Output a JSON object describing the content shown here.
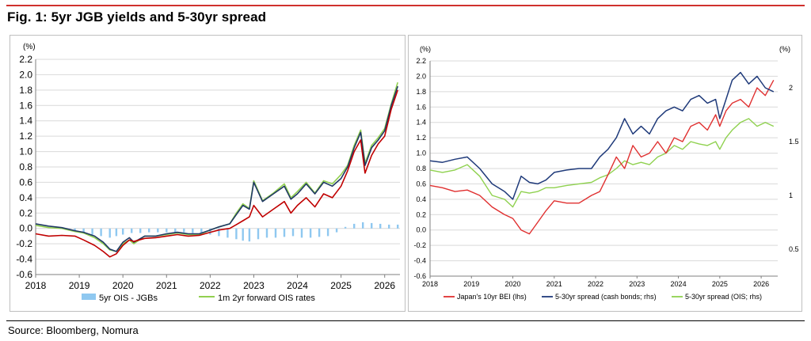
{
  "figure": {
    "title": "Fig. 1: 5yr JGB yields and 5-30yr spread",
    "source": "Source: Bloomberg, Nomura"
  },
  "colors": {
    "accent_rule": "#d0312d",
    "series_5yr_jgb": "#c00000",
    "series_5yr_ois": "#1f3864",
    "series_forward_ois": "#92d050",
    "series_spread_bar": "#8fc8f0",
    "bei": "#e03030",
    "spread_cash": "#1f3a7a",
    "spread_ois": "#8fd14f"
  },
  "chart_data": [
    {
      "type": "line",
      "ylabel": "(%)",
      "ylim": [
        -0.6,
        2.2
      ],
      "yticks": [
        "2.2",
        "2.0",
        "1.8",
        "1.6",
        "1.4",
        "1.2",
        "1.0",
        "0.8",
        "0.6",
        "0.4",
        "0.2",
        "0.0",
        "-0.2",
        "-0.4",
        "-0.6"
      ],
      "xlim": [
        2018.0,
        2026.35
      ],
      "xticks": [
        "2018",
        "2019",
        "2020",
        "2021",
        "2022",
        "2023",
        "2024",
        "2025",
        "2026"
      ],
      "grid": true,
      "legend": "bottom",
      "series": [
        {
          "role": "navy",
          "x": [
            2018.0,
            2018.3,
            2018.6,
            2018.9,
            2019.1,
            2019.35,
            2019.55,
            2019.7,
            2019.85,
            2020.0,
            2020.15,
            2020.25,
            2020.5,
            2020.75,
            2021.0,
            2021.25,
            2021.5,
            2021.75,
            2022.0,
            2022.2,
            2022.45,
            2022.6,
            2022.75,
            2022.9,
            2023.0,
            2023.2,
            2023.45,
            2023.7,
            2023.85,
            2024.0,
            2024.2,
            2024.4,
            2024.6,
            2024.8,
            2025.0,
            2025.15,
            2025.3,
            2025.45,
            2025.55,
            2025.7,
            2025.85,
            2026.0,
            2026.15,
            2026.3
          ],
          "values": [
            0.06,
            0.03,
            0.01,
            -0.03,
            -0.05,
            -0.1,
            -0.18,
            -0.27,
            -0.3,
            -0.18,
            -0.12,
            -0.18,
            -0.1,
            -0.1,
            -0.07,
            -0.05,
            -0.07,
            -0.07,
            -0.02,
            0.02,
            0.06,
            0.18,
            0.3,
            0.25,
            0.6,
            0.35,
            0.45,
            0.55,
            0.38,
            0.45,
            0.58,
            0.45,
            0.6,
            0.55,
            0.65,
            0.8,
            1.05,
            1.25,
            0.82,
            1.05,
            1.15,
            1.27,
            1.6,
            1.85
          ]
        },
        {
          "role": "red",
          "x": [
            2018.0,
            2018.3,
            2018.6,
            2018.9,
            2019.1,
            2019.35,
            2019.55,
            2019.7,
            2019.85,
            2020.0,
            2020.15,
            2020.25,
            2020.5,
            2020.75,
            2021.0,
            2021.25,
            2021.5,
            2021.75,
            2022.0,
            2022.2,
            2022.45,
            2022.6,
            2022.75,
            2022.9,
            2023.0,
            2023.2,
            2023.45,
            2023.7,
            2023.85,
            2024.0,
            2024.2,
            2024.4,
            2024.6,
            2024.8,
            2025.0,
            2025.15,
            2025.3,
            2025.45,
            2025.55,
            2025.7,
            2025.85,
            2026.0,
            2026.15,
            2026.3
          ],
          "values": [
            -0.07,
            -0.1,
            -0.09,
            -0.1,
            -0.15,
            -0.22,
            -0.3,
            -0.37,
            -0.33,
            -0.22,
            -0.15,
            -0.17,
            -0.13,
            -0.12,
            -0.1,
            -0.08,
            -0.1,
            -0.09,
            -0.05,
            -0.02,
            0.0,
            0.05,
            0.1,
            0.15,
            0.3,
            0.15,
            0.25,
            0.35,
            0.2,
            0.3,
            0.4,
            0.28,
            0.45,
            0.4,
            0.55,
            0.75,
            1.0,
            1.15,
            0.72,
            0.95,
            1.1,
            1.2,
            1.55,
            1.8
          ]
        },
        {
          "role": "green",
          "x": [
            2018.0,
            2018.3,
            2018.6,
            2018.9,
            2019.1,
            2019.35,
            2019.55,
            2019.7,
            2019.85,
            2020.0,
            2020.15,
            2020.25,
            2020.5,
            2020.75,
            2021.0,
            2021.25,
            2021.5,
            2021.75,
            2022.0,
            2022.2,
            2022.45,
            2022.6,
            2022.75,
            2022.9,
            2023.0,
            2023.2,
            2023.45,
            2023.7,
            2023.85,
            2024.0,
            2024.2,
            2024.4,
            2024.6,
            2024.8,
            2025.0,
            2025.15,
            2025.3,
            2025.45,
            2025.55,
            2025.7,
            2025.85,
            2026.0,
            2026.15,
            2026.3
          ],
          "values": [
            0.04,
            0.01,
            0.0,
            -0.04,
            -0.06,
            -0.12,
            -0.2,
            -0.28,
            -0.3,
            -0.2,
            -0.15,
            -0.2,
            -0.1,
            -0.1,
            -0.08,
            -0.06,
            -0.08,
            -0.08,
            -0.02,
            0.02,
            0.06,
            0.2,
            0.32,
            0.26,
            0.62,
            0.36,
            0.46,
            0.58,
            0.4,
            0.48,
            0.6,
            0.46,
            0.62,
            0.58,
            0.7,
            0.82,
            1.08,
            1.28,
            0.85,
            1.08,
            1.18,
            1.3,
            1.62,
            1.9
          ]
        }
      ],
      "bars": {
        "x": [
          2018.7,
          2018.9,
          2019.1,
          2019.3,
          2019.5,
          2019.7,
          2019.85,
          2020.0,
          2020.2,
          2020.4,
          2020.6,
          2020.8,
          2021.0,
          2021.2,
          2021.4,
          2021.6,
          2021.8,
          2022.0,
          2022.2,
          2022.4,
          2022.6,
          2022.75,
          2022.9,
          2023.1,
          2023.3,
          2023.5,
          2023.7,
          2023.9,
          2024.1,
          2024.3,
          2024.5,
          2024.7,
          2024.9,
          2025.1,
          2025.3,
          2025.5,
          2025.7,
          2025.9,
          2026.1,
          2026.3
        ],
        "values": [
          -0.02,
          -0.04,
          -0.06,
          -0.08,
          -0.1,
          -0.12,
          -0.1,
          -0.08,
          -0.06,
          -0.06,
          -0.05,
          -0.05,
          -0.05,
          -0.06,
          -0.05,
          -0.06,
          -0.06,
          -0.08,
          -0.1,
          -0.12,
          -0.14,
          -0.16,
          -0.17,
          -0.14,
          -0.12,
          -0.12,
          -0.11,
          -0.1,
          -0.12,
          -0.12,
          -0.11,
          -0.1,
          -0.05,
          0.02,
          0.06,
          0.08,
          0.07,
          0.06,
          0.05,
          0.05
        ]
      },
      "legend_entries": [
        "5yr  OIS - JGBs",
        "1m 2yr forward OIS rates"
      ]
    },
    {
      "type": "line",
      "ylabel_left": "(%)",
      "ylabel_right": "(%)",
      "ylim_left": [
        -0.6,
        2.2
      ],
      "ylim_right": [
        0.25,
        2.25
      ],
      "yticks_left": [
        "2.2",
        "2.0",
        "1.8",
        "1.6",
        "1.4",
        "1.2",
        "1.0",
        "0.8",
        "0.6",
        "0.4",
        "0.2",
        "0.0",
        "-0.2",
        "-0.4",
        "-0.6"
      ],
      "yticks_right": [
        "2",
        "1.5",
        "1",
        "0.5"
      ],
      "xlim": [
        2018.0,
        2026.4
      ],
      "xticks": [
        "2018",
        "2019",
        "2020",
        "2021",
        "2022",
        "2023",
        "2024",
        "2025",
        "2026"
      ],
      "grid": true,
      "legend": "bottom",
      "series": [
        {
          "role": "bei",
          "x": [
            2018.0,
            2018.3,
            2018.6,
            2018.9,
            2019.2,
            2019.5,
            2019.8,
            2020.0,
            2020.2,
            2020.4,
            2020.6,
            2020.8,
            2021.0,
            2021.3,
            2021.6,
            2021.9,
            2022.1,
            2022.3,
            2022.5,
            2022.7,
            2022.9,
            2023.1,
            2023.3,
            2023.5,
            2023.7,
            2023.9,
            2024.1,
            2024.3,
            2024.5,
            2024.7,
            2024.9,
            2025.0,
            2025.15,
            2025.3,
            2025.5,
            2025.7,
            2025.9,
            2026.1,
            2026.3
          ],
          "values": [
            0.58,
            0.55,
            0.5,
            0.52,
            0.45,
            0.3,
            0.2,
            0.15,
            0.0,
            -0.05,
            0.1,
            0.25,
            0.38,
            0.35,
            0.35,
            0.45,
            0.5,
            0.72,
            0.95,
            0.8,
            1.1,
            0.95,
            1.0,
            1.15,
            1.0,
            1.2,
            1.15,
            1.35,
            1.4,
            1.3,
            1.5,
            1.35,
            1.55,
            1.65,
            1.7,
            1.6,
            1.85,
            1.75,
            1.95
          ]
        },
        {
          "role": "cash",
          "x": [
            2018.0,
            2018.3,
            2018.6,
            2018.9,
            2019.2,
            2019.5,
            2019.8,
            2020.0,
            2020.2,
            2020.4,
            2020.6,
            2020.8,
            2021.0,
            2021.3,
            2021.6,
            2021.9,
            2022.1,
            2022.3,
            2022.5,
            2022.7,
            2022.9,
            2023.1,
            2023.3,
            2023.5,
            2023.7,
            2023.9,
            2024.1,
            2024.3,
            2024.5,
            2024.7,
            2024.9,
            2025.0,
            2025.15,
            2025.3,
            2025.5,
            2025.7,
            2025.9,
            2026.1,
            2026.3
          ],
          "values": [
            0.9,
            0.88,
            0.92,
            0.95,
            0.8,
            0.6,
            0.5,
            0.4,
            0.7,
            0.62,
            0.6,
            0.65,
            0.75,
            0.78,
            0.8,
            0.8,
            0.95,
            1.05,
            1.2,
            1.45,
            1.25,
            1.35,
            1.25,
            1.45,
            1.55,
            1.6,
            1.55,
            1.7,
            1.75,
            1.65,
            1.7,
            1.45,
            1.7,
            1.95,
            2.05,
            1.9,
            2.0,
            1.85,
            1.8
          ]
        },
        {
          "role": "ois",
          "x": [
            2018.0,
            2018.3,
            2018.6,
            2018.9,
            2019.2,
            2019.5,
            2019.8,
            2020.0,
            2020.2,
            2020.4,
            2020.6,
            2020.8,
            2021.0,
            2021.3,
            2021.6,
            2021.9,
            2022.1,
            2022.3,
            2022.5,
            2022.7,
            2022.9,
            2023.1,
            2023.3,
            2023.5,
            2023.7,
            2023.9,
            2024.1,
            2024.3,
            2024.5,
            2024.7,
            2024.9,
            2025.0,
            2025.15,
            2025.3,
            2025.5,
            2025.7,
            2025.9,
            2026.1,
            2026.3
          ],
          "values": [
            0.78,
            0.75,
            0.78,
            0.85,
            0.7,
            0.45,
            0.4,
            0.3,
            0.5,
            0.48,
            0.5,
            0.55,
            0.55,
            0.58,
            0.6,
            0.62,
            0.68,
            0.72,
            0.8,
            0.9,
            0.85,
            0.88,
            0.85,
            0.95,
            1.0,
            1.1,
            1.05,
            1.15,
            1.12,
            1.1,
            1.15,
            1.05,
            1.2,
            1.3,
            1.4,
            1.45,
            1.35,
            1.4,
            1.35
          ]
        }
      ],
      "legend_entries": [
        "Japan's 10yr BEI (lhs)",
        "5-30yr spread (cash bonds; rhs)",
        "5-30yr spread (OIS; rhs)"
      ]
    }
  ]
}
